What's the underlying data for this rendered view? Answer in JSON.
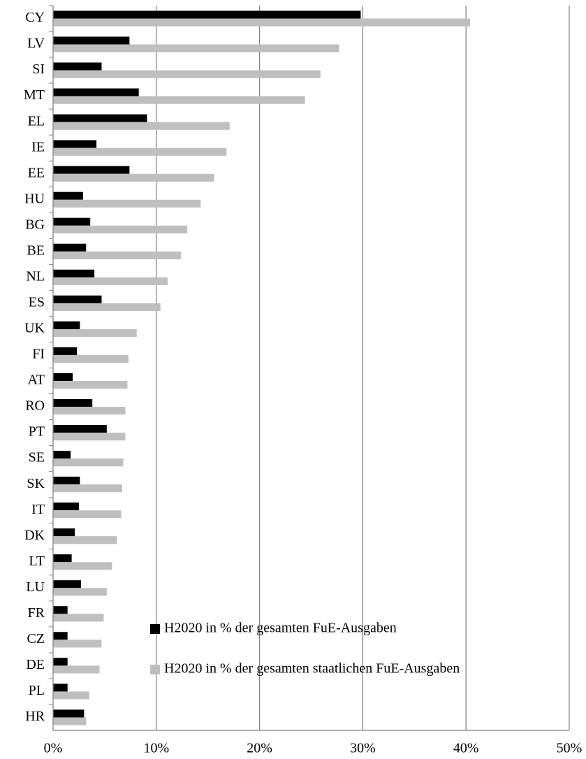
{
  "chart_data": {
    "type": "hbar",
    "categories": [
      "CY",
      "LV",
      "SI",
      "MT",
      "EL",
      "IE",
      "EE",
      "HU",
      "BG",
      "BE",
      "NL",
      "ES",
      "UK",
      "FI",
      "AT",
      "RO",
      "PT",
      "SE",
      "SK",
      "IT",
      "DK",
      "LT",
      "LU",
      "FR",
      "CZ",
      "DE",
      "PL",
      "HR"
    ],
    "series": [
      {
        "name": "H2020 in % der gesamten FuE-Ausgaben",
        "color": "#000000",
        "values": [
          29.8,
          7.4,
          4.7,
          8.3,
          9.1,
          4.2,
          7.4,
          2.9,
          3.6,
          3.2,
          4.0,
          4.7,
          2.6,
          2.3,
          1.9,
          3.8,
          5.2,
          1.7,
          2.6,
          2.5,
          2.1,
          1.8,
          2.7,
          1.4,
          1.4,
          1.4,
          1.4,
          3.0
        ]
      },
      {
        "name": "H2020 in % der gesamten staatlichen FuE-Ausgaben",
        "color": "#bfbfbf",
        "values": [
          40.4,
          27.7,
          25.9,
          24.4,
          17.1,
          16.8,
          15.6,
          14.3,
          13.0,
          12.4,
          11.1,
          10.4,
          8.1,
          7.3,
          7.2,
          7.0,
          7.0,
          6.8,
          6.7,
          6.6,
          6.2,
          5.7,
          5.2,
          4.9,
          4.7,
          4.5,
          3.5,
          3.2
        ]
      }
    ],
    "xlim": [
      0,
      50
    ],
    "xticks": [
      {
        "value": 0,
        "label": "0%"
      },
      {
        "value": 10,
        "label": "10%"
      },
      {
        "value": 20,
        "label": "20%"
      },
      {
        "value": 30,
        "label": "30%"
      },
      {
        "value": 40,
        "label": "40%"
      },
      {
        "value": 50,
        "label": "50%"
      }
    ],
    "grid": true,
    "legend": "lower right"
  }
}
